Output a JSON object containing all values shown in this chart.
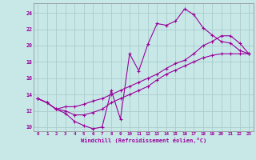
{
  "xlabel": "Windchill (Refroidissement éolien,°C)",
  "bg_color": "#c8e8e8",
  "line_color": "#990099",
  "grid_color": "#aacccc",
  "xlim": [
    -0.5,
    23.5
  ],
  "ylim": [
    9.5,
    25.2
  ],
  "xticks": [
    0,
    1,
    2,
    3,
    4,
    5,
    6,
    7,
    8,
    9,
    10,
    11,
    12,
    13,
    14,
    15,
    16,
    17,
    18,
    19,
    20,
    21,
    22,
    23
  ],
  "yticks": [
    10,
    12,
    14,
    16,
    18,
    20,
    22,
    24
  ],
  "line1_x": [
    0,
    1,
    2,
    3,
    4,
    5,
    6,
    7,
    8,
    9,
    10,
    11,
    12,
    13,
    14,
    15,
    16,
    17,
    18,
    19,
    20,
    21,
    22,
    23
  ],
  "line1_y": [
    13.5,
    13.0,
    12.2,
    11.7,
    10.7,
    10.2,
    9.8,
    10.0,
    14.5,
    11.0,
    19.0,
    16.9,
    20.2,
    22.7,
    22.5,
    23.0,
    24.5,
    23.8,
    22.2,
    21.3,
    20.5,
    20.3,
    19.4,
    19.0
  ],
  "line2_x": [
    0,
    1,
    2,
    3,
    4,
    5,
    6,
    7,
    8,
    9,
    10,
    11,
    12,
    13,
    14,
    15,
    16,
    17,
    18,
    19,
    20,
    21,
    22,
    23
  ],
  "line2_y": [
    13.5,
    13.0,
    12.2,
    12.0,
    11.5,
    11.5,
    11.8,
    12.2,
    13.0,
    13.5,
    14.0,
    14.5,
    15.0,
    15.8,
    16.5,
    17.0,
    17.5,
    18.0,
    18.5,
    18.8,
    19.0,
    19.0,
    19.0,
    19.0
  ],
  "line3_x": [
    0,
    1,
    2,
    3,
    4,
    5,
    6,
    7,
    8,
    9,
    10,
    11,
    12,
    13,
    14,
    15,
    16,
    17,
    18,
    19,
    20,
    21,
    22,
    23
  ],
  "line3_y": [
    13.5,
    13.0,
    12.2,
    12.5,
    12.5,
    12.8,
    13.2,
    13.5,
    14.0,
    14.5,
    15.0,
    15.5,
    16.0,
    16.5,
    17.2,
    17.8,
    18.2,
    19.0,
    20.0,
    20.5,
    21.2,
    21.2,
    20.3,
    19.0
  ]
}
